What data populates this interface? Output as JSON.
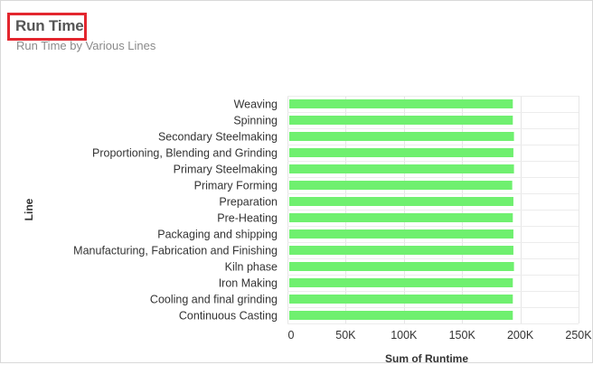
{
  "header": {
    "title": "Run Time",
    "subtitle": "Run Time by Various Lines"
  },
  "chart_data": {
    "type": "bar",
    "orientation": "horizontal",
    "categories": [
      "Weaving",
      "Spinning",
      "Secondary Steelmaking",
      "Proportioning, Blending and Grinding",
      "Primary Steelmaking",
      "Primary Forming",
      "Preparation",
      "Pre-Heating",
      "Packaging and shipping",
      "Manufacturing, Fabrication and Finishing",
      "Kiln phase",
      "Iron Making",
      "Cooling and final grinding",
      "Continuous Casting"
    ],
    "values": [
      192000,
      192000,
      193000,
      192500,
      193000,
      191500,
      192500,
      192000,
      192500,
      192500,
      193000,
      192000,
      192000,
      192000
    ],
    "xlabel": "Sum of Runtime",
    "ylabel": "Line",
    "xlim": [
      0,
      250000
    ],
    "xticks": [
      0,
      50000,
      100000,
      150000,
      200000,
      250000
    ],
    "xtick_labels": [
      "0",
      "50K",
      "100K",
      "150K",
      "200K",
      "250K"
    ],
    "bar_color": "#6ff06f",
    "grid": true,
    "legend": "none"
  }
}
